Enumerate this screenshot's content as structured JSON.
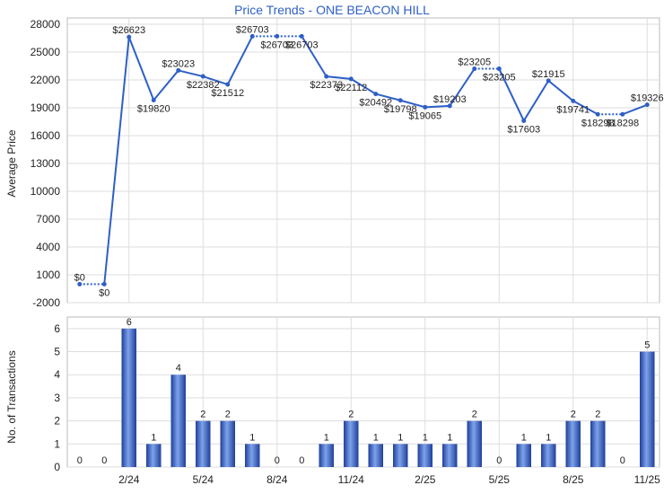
{
  "chart_data": [
    {
      "type": "line",
      "title": "Price Trends - ONE BEACON HILL",
      "y_label": "Average Price",
      "categories": [
        null,
        null,
        "2/24",
        null,
        null,
        "5/24",
        null,
        null,
        "8/24",
        null,
        null,
        "11/24",
        null,
        null,
        "2/25",
        null,
        null,
        "5/25",
        null,
        null,
        "8/25",
        null,
        null,
        "11/25"
      ],
      "series": [
        {
          "name": "Average Price",
          "color": "#2e5fc7",
          "values": [
            0,
            0,
            26623,
            19820,
            23023,
            22382,
            21512,
            26703,
            26703,
            26703,
            22373,
            22112,
            20492,
            19798,
            19065,
            19203,
            23205,
            23205,
            17603,
            21915,
            19741,
            18298,
            18298,
            19326
          ],
          "value_labels": [
            "$0",
            "$0",
            "$26623",
            "$19820",
            "$23023",
            "$22382",
            "$21512",
            "$26703",
            "$26703",
            "$26703",
            "$22373",
            "$22112",
            "$20492",
            "$19798",
            "$19065",
            "$19203",
            "$23205",
            "$23205",
            "$17603",
            "$21915",
            "$19741",
            "$18298",
            "$18298",
            "$19326"
          ]
        }
      ],
      "ylim": [
        -2000,
        28000
      ],
      "yticks": [
        -2000,
        1000,
        4000,
        7000,
        10000,
        13000,
        16000,
        19000,
        22000,
        25000,
        28000
      ],
      "grid": true
    },
    {
      "type": "bar",
      "y_label": "No. of Transactions",
      "categories": [
        null,
        null,
        "2/24",
        null,
        null,
        "5/24",
        null,
        null,
        "8/24",
        null,
        null,
        "11/24",
        null,
        null,
        "2/25",
        null,
        null,
        "5/25",
        null,
        null,
        "8/25",
        null,
        null,
        "11/25"
      ],
      "values": [
        0,
        0,
        6,
        1,
        4,
        2,
        2,
        1,
        0,
        0,
        1,
        2,
        1,
        1,
        1,
        1,
        2,
        0,
        1,
        1,
        2,
        2,
        0,
        5
      ],
      "color": "#2e5fc7",
      "ylim": [
        0,
        6.5
      ],
      "yticks": [
        0,
        1,
        2,
        3,
        4,
        5,
        6
      ],
      "grid": true
    }
  ]
}
